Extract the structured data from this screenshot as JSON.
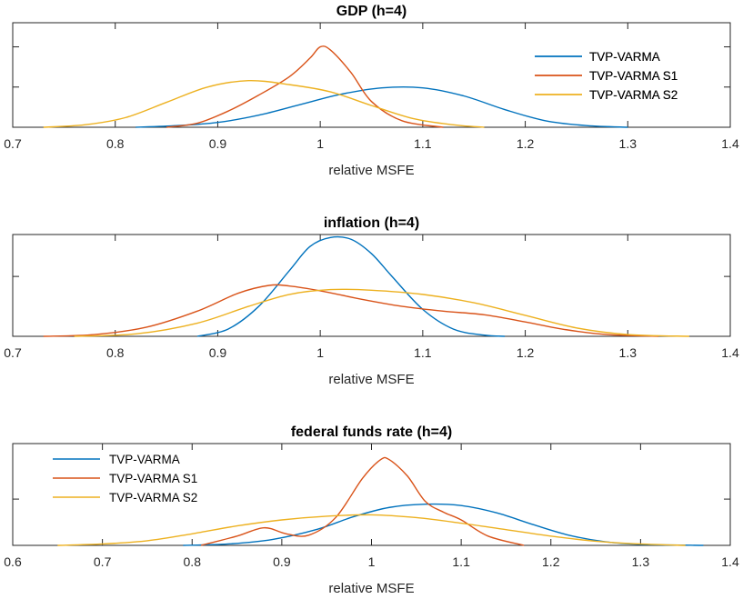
{
  "chart_data": [
    {
      "type": "line",
      "title": "GDP (h=4)",
      "xlabel": "relative MSFE",
      "ylabel": "",
      "xlim": [
        0.7,
        1.4
      ],
      "xticks": [
        0.7,
        0.8,
        0.9,
        1.0,
        1.1,
        1.2,
        1.3,
        1.4
      ],
      "xtick_labels": [
        "0.7",
        "0.8",
        "0.9",
        "1",
        "1.1",
        "1.2",
        "1.3",
        "1.4"
      ],
      "ylim": [
        0,
        1.3
      ],
      "ytick_values": [
        0.5,
        1.0
      ],
      "legend_position": "top-right",
      "series": [
        {
          "name": "TVP-VARMA",
          "color": "#0072BD",
          "x": [
            0.82,
            0.86,
            0.9,
            0.94,
            0.98,
            1.02,
            1.06,
            1.1,
            1.14,
            1.18,
            1.22,
            1.26,
            1.3
          ],
          "y": [
            0.0,
            0.02,
            0.06,
            0.15,
            0.28,
            0.41,
            0.49,
            0.49,
            0.39,
            0.22,
            0.08,
            0.02,
            0.0
          ]
        },
        {
          "name": "TVP-VARMA S1",
          "color": "#D95319",
          "x": [
            0.85,
            0.88,
            0.91,
            0.94,
            0.97,
            0.99,
            1.0,
            1.01,
            1.03,
            1.05,
            1.08,
            1.12
          ],
          "y": [
            0.0,
            0.05,
            0.2,
            0.4,
            0.63,
            0.86,
            1.0,
            0.96,
            0.68,
            0.32,
            0.08,
            0.0
          ]
        },
        {
          "name": "TVP-VARMA S2",
          "color": "#EDB120",
          "x": [
            0.73,
            0.77,
            0.81,
            0.85,
            0.89,
            0.93,
            0.97,
            1.01,
            1.05,
            1.09,
            1.13,
            1.16
          ],
          "y": [
            0.0,
            0.03,
            0.12,
            0.31,
            0.5,
            0.58,
            0.53,
            0.44,
            0.27,
            0.11,
            0.03,
            0.0
          ]
        }
      ]
    },
    {
      "type": "line",
      "title": "inflation (h=4)",
      "xlabel": "relative MSFE",
      "ylabel": "",
      "xlim": [
        0.7,
        1.4
      ],
      "xticks": [
        0.7,
        0.8,
        0.9,
        1.0,
        1.1,
        1.2,
        1.3,
        1.4
      ],
      "xtick_labels": [
        "0.7",
        "0.8",
        "0.9",
        "1",
        "1.1",
        "1.2",
        "1.3",
        "1.4"
      ],
      "ylim": [
        0,
        1.7
      ],
      "ytick_values": [
        1.0
      ],
      "legend_position": "top-right",
      "series": [
        {
          "name": "TVP-VARMA",
          "color": "#0072BD",
          "x": [
            0.88,
            0.91,
            0.94,
            0.97,
            0.99,
            1.01,
            1.03,
            1.05,
            1.07,
            1.1,
            1.13,
            1.16,
            1.18
          ],
          "y": [
            0.0,
            0.12,
            0.5,
            1.1,
            1.5,
            1.65,
            1.62,
            1.38,
            1.0,
            0.45,
            0.12,
            0.02,
            0.0
          ]
        },
        {
          "name": "TVP-VARMA S1",
          "color": "#D95319",
          "x": [
            0.73,
            0.78,
            0.83,
            0.88,
            0.92,
            0.95,
            0.97,
            1.0,
            1.04,
            1.08,
            1.12,
            1.16,
            1.2,
            1.24,
            1.28,
            1.33
          ],
          "y": [
            0.0,
            0.03,
            0.15,
            0.42,
            0.72,
            0.85,
            0.84,
            0.76,
            0.62,
            0.5,
            0.42,
            0.36,
            0.24,
            0.11,
            0.03,
            0.0
          ]
        },
        {
          "name": "TVP-VARMA S2",
          "color": "#EDB120",
          "x": [
            0.76,
            0.82,
            0.88,
            0.93,
            0.97,
            1.01,
            1.05,
            1.1,
            1.15,
            1.2,
            1.25,
            1.3,
            1.36
          ],
          "y": [
            0.0,
            0.04,
            0.22,
            0.5,
            0.7,
            0.78,
            0.77,
            0.7,
            0.56,
            0.35,
            0.14,
            0.03,
            0.0
          ]
        }
      ]
    },
    {
      "type": "line",
      "title": "federal funds rate (h=4)",
      "xlabel": "relative MSFE",
      "ylabel": "",
      "xlim": [
        0.6,
        1.4
      ],
      "xticks": [
        0.6,
        0.7,
        0.8,
        0.9,
        1.0,
        1.1,
        1.2,
        1.3,
        1.4
      ],
      "xtick_labels": [
        "0.6",
        "0.7",
        "0.8",
        "0.9",
        "1",
        "1.1",
        "1.2",
        "1.3",
        "1.4"
      ],
      "ylim": [
        0,
        2.2
      ],
      "ytick_values": [
        1.0
      ],
      "legend_position": "top-left",
      "series": [
        {
          "name": "TVP-VARMA",
          "color": "#0072BD",
          "x": [
            0.79,
            0.84,
            0.89,
            0.94,
            0.98,
            1.02,
            1.06,
            1.1,
            1.14,
            1.18,
            1.22,
            1.26,
            1.3,
            1.37
          ],
          "y": [
            0.0,
            0.03,
            0.13,
            0.35,
            0.62,
            0.82,
            0.89,
            0.86,
            0.7,
            0.45,
            0.22,
            0.08,
            0.02,
            0.0
          ]
        },
        {
          "name": "TVP-VARMA S1",
          "color": "#D95319",
          "x": [
            0.81,
            0.85,
            0.88,
            0.905,
            0.93,
            0.96,
            0.99,
            1.01,
            1.02,
            1.04,
            1.06,
            1.08,
            1.1,
            1.13,
            1.17
          ],
          "y": [
            0.0,
            0.2,
            0.38,
            0.25,
            0.22,
            0.6,
            1.45,
            1.85,
            1.85,
            1.5,
            0.95,
            0.72,
            0.55,
            0.2,
            0.0
          ]
        },
        {
          "name": "TVP-VARMA S2",
          "color": "#EDB120",
          "x": [
            0.65,
            0.7,
            0.75,
            0.8,
            0.85,
            0.9,
            0.95,
            1.0,
            1.05,
            1.1,
            1.15,
            1.2,
            1.25,
            1.3,
            1.35
          ],
          "y": [
            0.0,
            0.03,
            0.1,
            0.25,
            0.42,
            0.55,
            0.63,
            0.66,
            0.6,
            0.48,
            0.34,
            0.2,
            0.09,
            0.03,
            0.0
          ]
        }
      ]
    }
  ]
}
